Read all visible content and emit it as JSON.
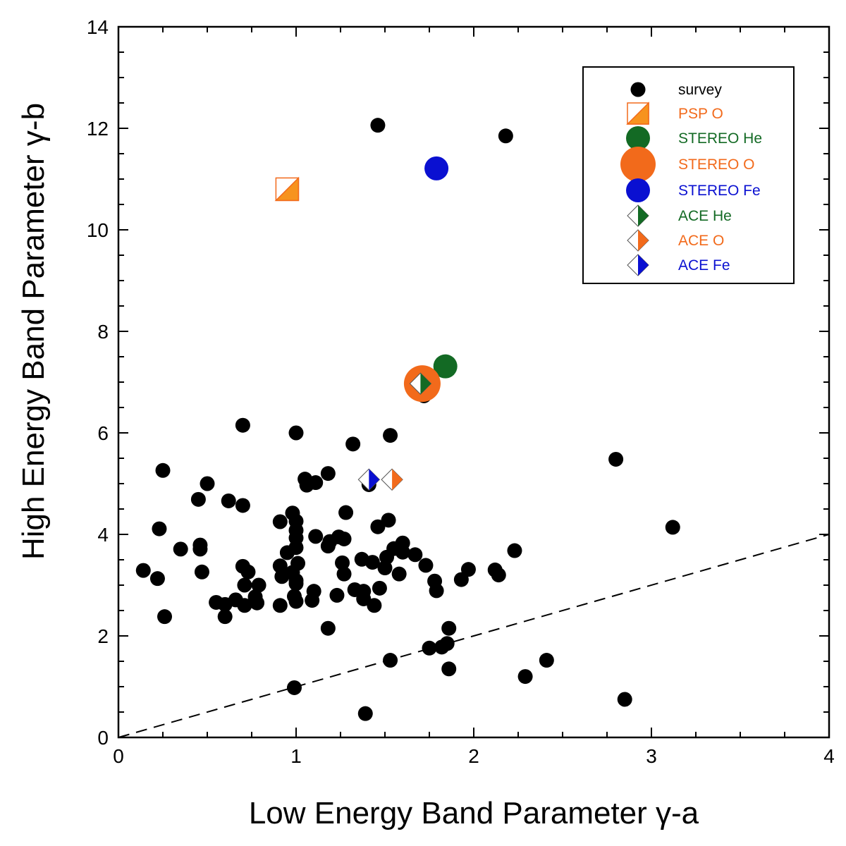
{
  "chart_data": {
    "type": "scatter",
    "title": "",
    "xlabel": "Low Energy Band Parameter γ-a",
    "ylabel": "High Energy Band Parameter γ-b",
    "xlim": [
      0,
      4
    ],
    "ylim": [
      0,
      14
    ],
    "x_ticks": [
      0,
      1,
      2,
      3,
      4
    ],
    "x_tick_labels": [
      "0",
      "1",
      "2",
      "3",
      "4"
    ],
    "y_ticks": [
      0,
      2,
      4,
      6,
      8,
      10,
      12,
      14
    ],
    "y_tick_labels": [
      "0",
      "2",
      "4",
      "6",
      "8",
      "10",
      "12",
      "14"
    ],
    "grid": false,
    "legend_position": "top-right",
    "reference_line": {
      "style": "dashed",
      "color": "#000000",
      "from": [
        0,
        0
      ],
      "to": [
        4,
        4
      ]
    },
    "colors": {
      "survey": "#000000",
      "psp": "#f7931e",
      "orange": "#f26a1b",
      "green": "#136a24",
      "blue": "#0a10d1"
    },
    "legend": [
      {
        "label": "survey",
        "color": "#000000",
        "marker": "dot"
      },
      {
        "label": "PSP O",
        "color": "#f26a1b",
        "marker": "square-half"
      },
      {
        "label": "STEREO He",
        "color": "#136a24",
        "marker": "circle-medium"
      },
      {
        "label": "STEREO O",
        "color": "#f26a1b",
        "marker": "circle-large"
      },
      {
        "label": "STEREO Fe",
        "color": "#0a10d1",
        "marker": "circle-medium-blue"
      },
      {
        "label": "ACE He",
        "color": "#136a24",
        "marker": "diamond-half"
      },
      {
        "label": "ACE O",
        "color": "#f26a1b",
        "marker": "diamond-half"
      },
      {
        "label": "ACE Fe",
        "color": "#0a10d1",
        "marker": "diamond-half"
      }
    ],
    "series": [
      {
        "name": "survey",
        "points": [
          [
            1.46,
            12.06
          ],
          [
            2.18,
            11.85
          ],
          [
            0.7,
            6.15
          ],
          [
            1.0,
            6.0
          ],
          [
            1.32,
            5.78
          ],
          [
            1.53,
            5.95
          ],
          [
            0.25,
            5.26
          ],
          [
            1.18,
            5.2
          ],
          [
            1.05,
            5.09
          ],
          [
            1.11,
            5.02
          ],
          [
            1.06,
            4.97
          ],
          [
            0.5,
            5.0
          ],
          [
            0.45,
            4.69
          ],
          [
            0.62,
            4.66
          ],
          [
            0.7,
            4.57
          ],
          [
            1.28,
            4.43
          ],
          [
            0.98,
            4.42
          ],
          [
            1.0,
            4.26
          ],
          [
            0.91,
            4.25
          ],
          [
            1.52,
            4.28
          ],
          [
            1.46,
            4.15
          ],
          [
            0.23,
            4.11
          ],
          [
            1.0,
            4.08
          ],
          [
            1.0,
            3.93
          ],
          [
            1.11,
            3.96
          ],
          [
            1.24,
            3.95
          ],
          [
            1.27,
            3.91
          ],
          [
            1.19,
            3.86
          ],
          [
            1.18,
            3.77
          ],
          [
            0.46,
            3.79
          ],
          [
            0.46,
            3.71
          ],
          [
            0.35,
            3.71
          ],
          [
            1.0,
            3.74
          ],
          [
            0.95,
            3.64
          ],
          [
            1.6,
            3.83
          ],
          [
            1.55,
            3.72
          ],
          [
            1.6,
            3.65
          ],
          [
            1.67,
            3.6
          ],
          [
            2.23,
            3.68
          ],
          [
            1.51,
            3.55
          ],
          [
            1.37,
            3.51
          ],
          [
            1.43,
            3.45
          ],
          [
            1.01,
            3.43
          ],
          [
            1.26,
            3.44
          ],
          [
            1.73,
            3.39
          ],
          [
            0.91,
            3.38
          ],
          [
            0.7,
            3.37
          ],
          [
            0.14,
            3.29
          ],
          [
            0.47,
            3.26
          ],
          [
            0.73,
            3.26
          ],
          [
            1.5,
            3.34
          ],
          [
            1.97,
            3.31
          ],
          [
            2.12,
            3.3
          ],
          [
            0.98,
            3.25
          ],
          [
            1.27,
            3.22
          ],
          [
            1.58,
            3.22
          ],
          [
            2.14,
            3.2
          ],
          [
            0.22,
            3.13
          ],
          [
            0.92,
            3.17
          ],
          [
            1.0,
            3.09
          ],
          [
            1.78,
            3.08
          ],
          [
            1.93,
            3.11
          ],
          [
            0.71,
            3.0
          ],
          [
            0.79,
            3.0
          ],
          [
            1.0,
            3.03
          ],
          [
            1.33,
            2.91
          ],
          [
            1.38,
            2.88
          ],
          [
            1.47,
            2.94
          ],
          [
            1.79,
            2.89
          ],
          [
            1.1,
            2.88
          ],
          [
            1.23,
            2.8
          ],
          [
            0.99,
            2.78
          ],
          [
            0.77,
            2.77
          ],
          [
            1.38,
            2.73
          ],
          [
            0.66,
            2.71
          ],
          [
            0.55,
            2.66
          ],
          [
            0.6,
            2.62
          ],
          [
            1.0,
            2.68
          ],
          [
            1.09,
            2.7
          ],
          [
            0.78,
            2.65
          ],
          [
            0.71,
            2.6
          ],
          [
            0.91,
            2.6
          ],
          [
            1.44,
            2.6
          ],
          [
            0.26,
            2.38
          ],
          [
            0.6,
            2.38
          ],
          [
            1.18,
            2.15
          ],
          [
            1.86,
            2.15
          ],
          [
            1.85,
            1.85
          ],
          [
            1.75,
            1.76
          ],
          [
            1.82,
            1.78
          ],
          [
            1.53,
            1.52
          ],
          [
            2.41,
            1.52
          ],
          [
            1.86,
            1.35
          ],
          [
            2.29,
            1.2
          ],
          [
            0.99,
            0.98
          ],
          [
            2.85,
            0.75
          ],
          [
            1.39,
            0.47
          ],
          [
            2.8,
            5.48
          ],
          [
            3.12,
            4.14
          ],
          [
            1.72,
            6.73
          ],
          [
            1.41,
            4.98
          ]
        ]
      },
      {
        "name": "PSP O",
        "points": [
          [
            0.95,
            10.8
          ]
        ]
      },
      {
        "name": "STEREO He",
        "points": [
          [
            1.84,
            7.31
          ]
        ]
      },
      {
        "name": "STEREO O",
        "points": [
          [
            1.71,
            6.97
          ]
        ]
      },
      {
        "name": "STEREO Fe",
        "points": [
          [
            1.79,
            11.21
          ]
        ]
      },
      {
        "name": "ACE He",
        "points": [
          [
            1.7,
            6.97
          ]
        ]
      },
      {
        "name": "ACE O",
        "points": [
          [
            1.54,
            5.08
          ]
        ]
      },
      {
        "name": "ACE Fe",
        "points": [
          [
            1.41,
            5.08
          ]
        ]
      }
    ]
  }
}
